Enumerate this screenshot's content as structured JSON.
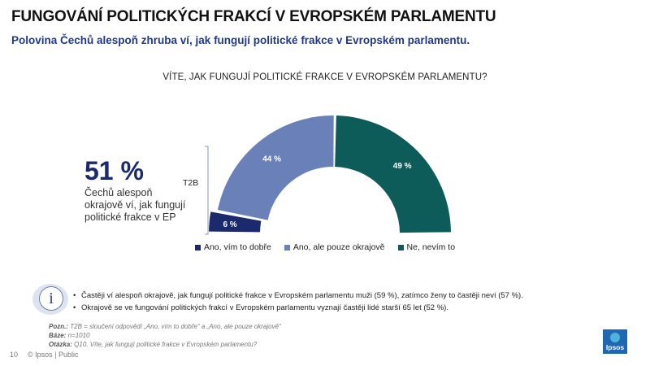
{
  "header": {
    "title": "FUNGOVÁNÍ POLITICKÝCH FRAKCÍ V EVROPSKÉM PARLAMENTU",
    "subtitle": "Polovina Čechů alespoň zhruba ví, jak fungují politické frakce v Evropském parlamentu."
  },
  "kpi": {
    "value": "51 %",
    "caption": "Čechů alespoň okrajově ví, jak fungují politické frakce v EP",
    "bracket_label": "T2B"
  },
  "chart_data": {
    "type": "pie",
    "variant": "semi-donut",
    "title": "VÍTE, JAK FUNGUJÍ POLITICKÉ FRAKCE V EVROPSKÉM PARLAMENTU?",
    "categories": [
      "Ano, vím to dobře",
      "Ano, ale pouze okrajově",
      "Ne, nevím to"
    ],
    "values": [
      6,
      44,
      49
    ],
    "data_labels": [
      "6 %",
      "44 %",
      "49 %"
    ],
    "colors": [
      "#1a2a6c",
      "#6a80b8",
      "#0d5c5a"
    ],
    "exploded": [
      true,
      false,
      false
    ],
    "legend_position": "bottom"
  },
  "notes": {
    "icon": "info-icon",
    "items": [
      "Častěji ví alespoň okrajově, jak fungují politické frakce v Evropském parlamentu muži (59 %), zatímco ženy to častěji neví (57 %).",
      "Okrajově se ve fungování politických frakcí v Evropském parlamentu vyznají častěji lidé starší 65 let (52 %)."
    ]
  },
  "footnote": {
    "pozn_label": "Pozn.:",
    "pozn_text": "T2B = sloučení odpovědí „Ano, vím to dobře“ a „Ano, ale pouze okrajově“",
    "baze_label": "Báze:",
    "baze_text": "n=1010",
    "otazka_label": "Otázka:",
    "otazka_text": "Q10. Víte, jak fungují politické frakce v Evropském parlamentu?"
  },
  "footer": {
    "page_number": "10",
    "copyright": "© Ipsos | Public",
    "logo_text": "Ipsos"
  }
}
